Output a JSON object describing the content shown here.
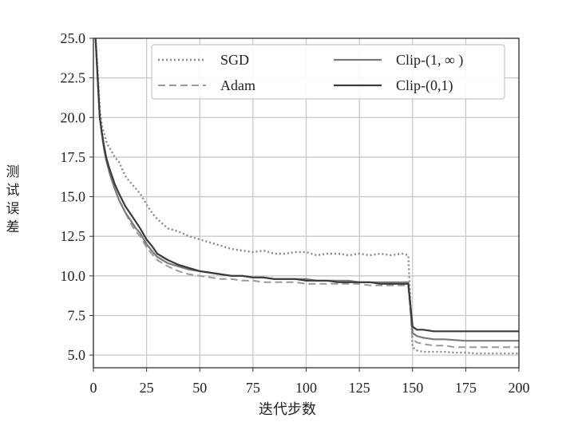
{
  "chart_data": {
    "type": "line",
    "title": "",
    "xlabel": "迭代步数",
    "ylabel": "测试误差",
    "xlim": [
      0,
      200
    ],
    "ylim": [
      4.2,
      25
    ],
    "xticks": [
      "0",
      "25",
      "50",
      "75",
      "100",
      "125",
      "150",
      "175",
      "200"
    ],
    "yticks": [
      "5.0",
      "7.5",
      "10.0",
      "12.5",
      "15.0",
      "17.5",
      "20.0",
      "22.5",
      "25.0"
    ],
    "grid": true,
    "legend_position": "top",
    "series": [
      {
        "name": "SGD",
        "style": "dotted",
        "color": "#888888",
        "x": [
          1,
          2,
          3,
          4,
          5,
          6,
          7,
          8,
          10,
          12,
          15,
          18,
          20,
          22,
          25,
          28,
          30,
          35,
          40,
          45,
          50,
          55,
          60,
          65,
          70,
          75,
          80,
          85,
          90,
          95,
          100,
          105,
          110,
          115,
          120,
          125,
          130,
          135,
          140,
          145,
          148,
          150,
          152,
          155,
          160,
          165,
          170,
          175,
          180,
          185,
          190,
          195,
          200
        ],
        "y": [
          25,
          23,
          20.5,
          19.5,
          19,
          18.5,
          18.2,
          18,
          17.5,
          17.2,
          16.3,
          15.8,
          15.5,
          15.2,
          14.5,
          13.9,
          13.6,
          13,
          12.8,
          12.5,
          12.3,
          12.1,
          11.9,
          11.7,
          11.6,
          11.5,
          11.6,
          11.4,
          11.4,
          11.5,
          11.5,
          11.3,
          11.4,
          11.4,
          11.3,
          11.4,
          11.3,
          11.4,
          11.3,
          11.4,
          11.3,
          5.5,
          5.3,
          5.2,
          5.2,
          5.2,
          5.15,
          5.15,
          5.1,
          5.1,
          5.1,
          5.1,
          5.1
        ]
      },
      {
        "name": "Adam",
        "style": "dashed",
        "color": "#999999",
        "x": [
          1,
          2,
          3,
          4,
          5,
          6,
          7,
          8,
          10,
          12,
          15,
          18,
          20,
          22,
          25,
          28,
          30,
          35,
          40,
          45,
          50,
          55,
          60,
          65,
          70,
          75,
          80,
          85,
          90,
          95,
          100,
          105,
          110,
          115,
          120,
          125,
          130,
          135,
          140,
          145,
          148,
          150,
          152,
          155,
          160,
          165,
          170,
          175,
          180,
          185,
          190,
          195,
          200
        ],
        "y": [
          25,
          22.5,
          20,
          18.8,
          18,
          17.5,
          17,
          16.5,
          15.5,
          14.8,
          14,
          13.2,
          12.8,
          12.5,
          11.8,
          11.3,
          11,
          10.6,
          10.3,
          10.1,
          10,
          9.9,
          9.8,
          9.8,
          9.7,
          9.7,
          9.6,
          9.6,
          9.6,
          9.6,
          9.5,
          9.5,
          9.5,
          9.5,
          9.5,
          9.5,
          9.4,
          9.4,
          9.4,
          9.4,
          9.4,
          6,
          5.8,
          5.7,
          5.6,
          5.6,
          5.5,
          5.5,
          5.5,
          5.5,
          5.5,
          5.5,
          5.5
        ]
      },
      {
        "name": "Clip-(1, ∞ )",
        "style": "solid",
        "color": "#7a7a7a",
        "x": [
          1,
          2,
          3,
          4,
          5,
          6,
          7,
          8,
          10,
          12,
          15,
          18,
          20,
          22,
          25,
          28,
          30,
          35,
          40,
          45,
          50,
          55,
          60,
          65,
          70,
          75,
          80,
          85,
          90,
          95,
          100,
          105,
          110,
          115,
          120,
          125,
          130,
          135,
          140,
          145,
          148,
          150,
          152,
          155,
          160,
          165,
          170,
          175,
          180,
          185,
          190,
          195,
          200
        ],
        "y": [
          25,
          22.5,
          20,
          19,
          18,
          17.3,
          16.8,
          16.3,
          15.5,
          14.8,
          14,
          13.4,
          13,
          12.7,
          12,
          11.5,
          11.2,
          10.8,
          10.6,
          10.4,
          10.3,
          10.2,
          10.1,
          10,
          10,
          9.9,
          9.9,
          9.8,
          9.8,
          9.8,
          9.8,
          9.7,
          9.7,
          9.7,
          9.7,
          9.6,
          9.6,
          9.6,
          9.6,
          9.6,
          9.6,
          6.4,
          6.2,
          6.1,
          6,
          6,
          5.95,
          5.9,
          5.9,
          5.9,
          5.9,
          5.9,
          5.9
        ]
      },
      {
        "name": "Clip-(0,1)",
        "style": "solid",
        "color": "#3a3a3a",
        "x": [
          1,
          2,
          3,
          4,
          5,
          6,
          7,
          8,
          10,
          12,
          15,
          18,
          20,
          22,
          25,
          28,
          30,
          35,
          40,
          45,
          50,
          55,
          60,
          65,
          70,
          75,
          80,
          85,
          90,
          95,
          100,
          105,
          110,
          115,
          120,
          125,
          130,
          135,
          140,
          145,
          148,
          150,
          152,
          155,
          160,
          165,
          170,
          175,
          180,
          185,
          190,
          195,
          200
        ],
        "y": [
          25,
          22.5,
          20,
          19,
          18.2,
          17.5,
          17,
          16.6,
          15.8,
          15.2,
          14.4,
          13.8,
          13.4,
          13,
          12.3,
          11.8,
          11.4,
          11,
          10.7,
          10.5,
          10.3,
          10.2,
          10.1,
          10,
          10,
          9.9,
          9.9,
          9.8,
          9.8,
          9.8,
          9.7,
          9.7,
          9.7,
          9.6,
          9.6,
          9.6,
          9.6,
          9.5,
          9.5,
          9.5,
          9.5,
          6.8,
          6.6,
          6.6,
          6.5,
          6.5,
          6.5,
          6.5,
          6.5,
          6.5,
          6.5,
          6.5,
          6.5
        ]
      }
    ]
  }
}
